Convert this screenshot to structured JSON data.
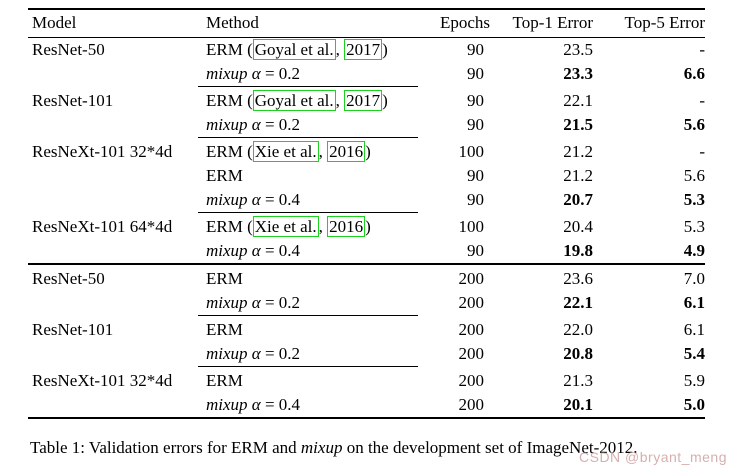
{
  "colors": {
    "citation_box": "#1fd11f",
    "watermark": "#d2a7a7",
    "rule": "#000000",
    "background": "#ffffff"
  },
  "table": {
    "headers": {
      "model": "Model",
      "method": "Method",
      "epochs": "Epochs",
      "top1": "Top-1 Error",
      "top5": "Top-5 Error"
    },
    "rows": [
      {
        "model": "ResNet-50",
        "m_pre": "ERM (",
        "cite1": "Goyal et al.",
        "sep": ", ",
        "cite2": "2017",
        "post": ")",
        "epochs": "90",
        "top1": "23.5",
        "top5": "-"
      },
      {
        "model": "",
        "m_it": "mixup α",
        "post": " = 0.2",
        "epochs": "90",
        "top1": "23.3",
        "top5": "6.6"
      },
      {
        "model": "ResNet-101",
        "m_pre": "ERM (",
        "cite1": "Goyal et al.",
        "sep": ", ",
        "cite2": "2017",
        "post": ")",
        "epochs": "90",
        "top1": "22.1",
        "top5": "-"
      },
      {
        "model": "",
        "m_it": "mixup α",
        "post": " = 0.2",
        "epochs": "90",
        "top1": "21.5",
        "top5": "5.6"
      },
      {
        "model": "ResNeXt-101 32*4d",
        "m_pre": "ERM (",
        "cite1": "Xie et al.",
        "sep": ", ",
        "cite2": "2016",
        "post": ")",
        "epochs": "100",
        "top1": "21.2",
        "top5": "-"
      },
      {
        "model": "",
        "m_pre": "ERM",
        "epochs": "90",
        "top1": "21.2",
        "top5": "5.6"
      },
      {
        "model": "",
        "m_it": "mixup α",
        "post": " = 0.4",
        "epochs": "90",
        "top1": "20.7",
        "top5": "5.3"
      },
      {
        "model": "ResNeXt-101 64*4d",
        "m_pre": "ERM (",
        "cite1": "Xie et al.",
        "sep": ", ",
        "cite2": "2016",
        "post": ")",
        "epochs": "100",
        "top1": "20.4",
        "top5": "5.3"
      },
      {
        "model": "",
        "m_it": "mixup α",
        "post": " = 0.4",
        "epochs": "90",
        "top1": "19.8",
        "top5": "4.9"
      },
      {
        "model": "ResNet-50",
        "m_pre": "ERM",
        "epochs": "200",
        "top1": "23.6",
        "top5": "7.0"
      },
      {
        "model": "",
        "m_it": "mixup α",
        "post": " = 0.2",
        "epochs": "200",
        "top1": "22.1",
        "top5": "6.1"
      },
      {
        "model": "ResNet-101",
        "m_pre": "ERM",
        "epochs": "200",
        "top1": "22.0",
        "top5": "6.1"
      },
      {
        "model": "",
        "m_it": "mixup α",
        "post": " = 0.2",
        "epochs": "200",
        "top1": "20.8",
        "top5": "5.4"
      },
      {
        "model": "ResNeXt-101 32*4d",
        "m_pre": "ERM",
        "epochs": "200",
        "top1": "21.3",
        "top5": "5.9"
      },
      {
        "model": "",
        "m_it": "mixup α",
        "post": " = 0.4",
        "epochs": "200",
        "top1": "20.1",
        "top5": "5.0"
      }
    ]
  },
  "caption": {
    "prefix": "Table 1: Validation errors for ERM and ",
    "italic_word": "mixup",
    "suffix": " on the development set of ImageNet-2012."
  },
  "watermark": {
    "text": "CSDN @bryant_meng"
  }
}
